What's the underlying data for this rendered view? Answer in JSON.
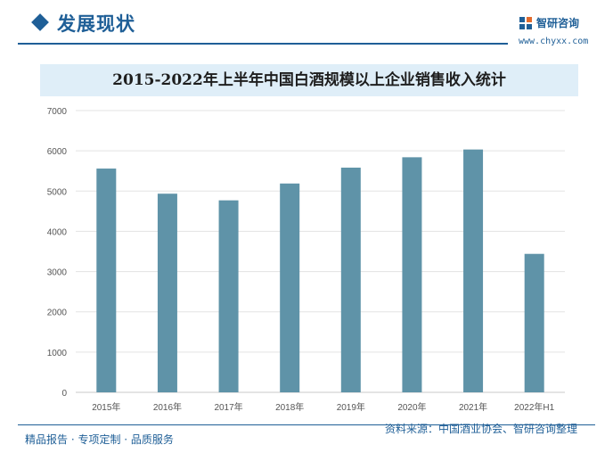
{
  "header": {
    "title": "发展现状"
  },
  "brand": {
    "name": "智研咨询",
    "url": "www.chyxx.com",
    "logo_icon": "chyxx-logo-icon"
  },
  "footer": {
    "tagline": "精品报告 · 专项定制 · 品质服务",
    "source": "资料来源：中国酒业协会、智研咨询整理"
  },
  "colors": {
    "accent": "#1f5f97",
    "bar": "#5f93a8",
    "banner": "#dfeef8"
  },
  "chart_data": {
    "type": "bar",
    "title": "2015-2022年上半年中国白酒规模以上企业销售收入统计",
    "categories": [
      "2015年",
      "2016年",
      "2017年",
      "2018年",
      "2019年",
      "2020年",
      "2021年",
      "2022年H1"
    ],
    "values": [
      5559,
      4935,
      4770,
      5188,
      5582,
      5840,
      6033,
      3440
    ],
    "yticks": [
      "0",
      "1000",
      "2000",
      "3000",
      "4000",
      "5000",
      "6000",
      "7000"
    ],
    "ylim": [
      0,
      7000
    ],
    "grid": true,
    "legend": "none"
  }
}
